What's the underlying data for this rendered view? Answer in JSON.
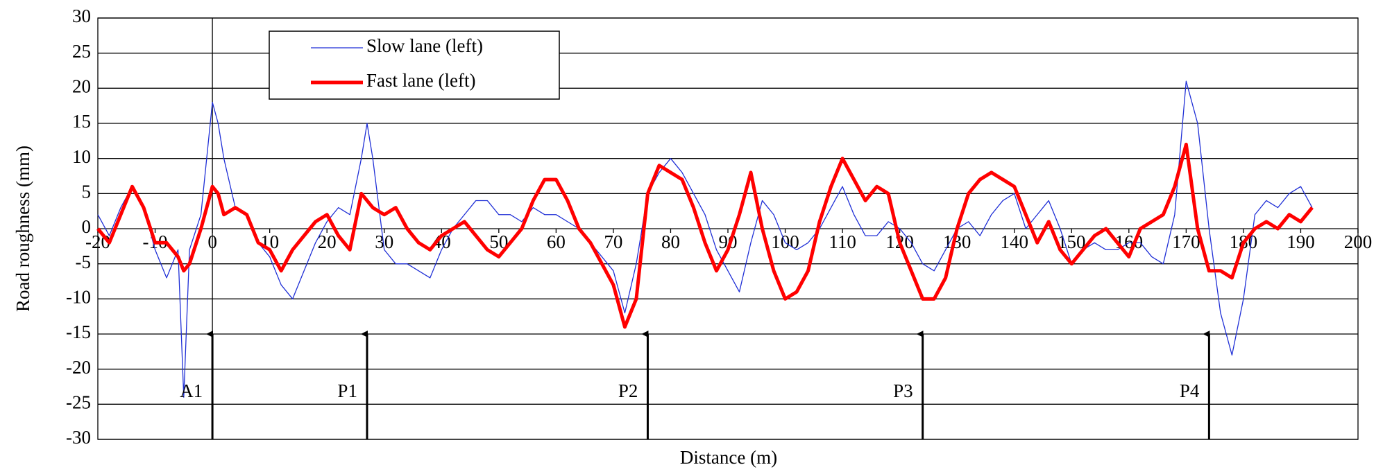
{
  "chart_data": {
    "type": "line",
    "xlabel": "Distance (m)",
    "ylabel": "Road roughness (mm)",
    "x": [
      -20,
      -18,
      -16,
      -14,
      -12,
      -10,
      -8,
      -6,
      -5,
      -4,
      -2,
      0,
      1,
      2,
      4,
      6,
      8,
      10,
      12,
      14,
      16,
      18,
      20,
      22,
      24,
      26,
      27,
      28,
      30,
      32,
      34,
      36,
      38,
      40,
      42,
      44,
      46,
      48,
      50,
      52,
      54,
      56,
      58,
      60,
      62,
      64,
      66,
      68,
      70,
      72,
      74,
      76,
      78,
      80,
      82,
      84,
      86,
      88,
      90,
      92,
      94,
      96,
      98,
      100,
      102,
      104,
      106,
      108,
      110,
      112,
      114,
      116,
      118,
      120,
      122,
      124,
      126,
      128,
      130,
      132,
      134,
      136,
      138,
      140,
      142,
      144,
      146,
      148,
      150,
      152,
      154,
      156,
      158,
      160,
      162,
      164,
      166,
      168,
      170,
      172,
      174,
      176,
      178,
      180,
      182,
      184,
      186,
      188,
      190,
      192
    ],
    "series": [
      {
        "name": "Slow lane (left)",
        "color": "#1f2fd6",
        "width": 1.3,
        "values": [
          2,
          -1,
          3,
          6,
          3,
          -3,
          -7,
          -3,
          -24,
          -3,
          2,
          18,
          15,
          10,
          3,
          2,
          -2,
          -4,
          -8,
          -10,
          -6,
          -2,
          1,
          3,
          2,
          10,
          15,
          10,
          -3,
          -5,
          -5,
          -6,
          -7,
          -3,
          0,
          2,
          4,
          4,
          2,
          2,
          1,
          3,
          2,
          2,
          1,
          0,
          -2,
          -4,
          -6,
          -12,
          -5,
          5,
          8,
          10,
          8,
          5,
          2,
          -3,
          -6,
          -9,
          -2,
          4,
          2,
          -2,
          -3,
          -2,
          0,
          3,
          6,
          2,
          -1,
          -1,
          1,
          0,
          -2,
          -5,
          -6,
          -3,
          0,
          1,
          -1,
          2,
          4,
          5,
          0,
          2,
          4,
          0,
          -5,
          -3,
          -2,
          -3,
          -3,
          -2,
          -2,
          -4,
          -5,
          2,
          21,
          15,
          0,
          -12,
          -18,
          -10,
          2,
          4,
          3,
          5,
          6,
          3
        ]
      },
      {
        "name": "Fast lane (left)",
        "color": "#ff0000",
        "width": 5,
        "values": [
          0,
          -2,
          2,
          6,
          3,
          -2,
          -2,
          -4,
          -6,
          -5,
          0,
          6,
          5,
          2,
          3,
          2,
          -2,
          -3,
          -6,
          -3,
          -1,
          1,
          2,
          -1,
          -3,
          5,
          4,
          3,
          2,
          3,
          0,
          -2,
          -3,
          -1,
          0,
          1,
          -1,
          -3,
          -4,
          -2,
          0,
          4,
          7,
          7,
          4,
          0,
          -2,
          -5,
          -8,
          -14,
          -10,
          5,
          9,
          8,
          7,
          3,
          -2,
          -6,
          -3,
          2,
          8,
          0,
          -6,
          -10,
          -9,
          -6,
          1,
          6,
          10,
          7,
          4,
          6,
          5,
          -2,
          -6,
          -10,
          -10,
          -7,
          0,
          5,
          7,
          8,
          7,
          6,
          2,
          -2,
          1,
          -3,
          -5,
          -3,
          -1,
          0,
          -2,
          -4,
          0,
          1,
          2,
          6,
          12,
          0,
          -6,
          -6,
          -7,
          -2,
          0,
          1,
          0,
          2,
          1,
          3
        ]
      }
    ],
    "xlim": [
      -20,
      200
    ],
    "xticks": [
      -20,
      -10,
      0,
      10,
      20,
      30,
      40,
      50,
      60,
      70,
      80,
      90,
      100,
      110,
      120,
      130,
      140,
      150,
      160,
      170,
      180,
      190,
      200
    ],
    "ylim": [
      -30,
      30
    ],
    "yticks": [
      -30,
      -25,
      -20,
      -15,
      -10,
      -5,
      0,
      5,
      10,
      15,
      20,
      25,
      30
    ],
    "grid": true,
    "legend": "upper left",
    "annotations": [
      {
        "text": "A1",
        "x": 0,
        "y": -15
      },
      {
        "text": "P1",
        "x": 27,
        "y": -15
      },
      {
        "text": "P2",
        "x": 76,
        "y": -15
      },
      {
        "text": "P3",
        "x": 124,
        "y": -15
      },
      {
        "text": "P4",
        "x": 174,
        "y": -15
      }
    ]
  }
}
